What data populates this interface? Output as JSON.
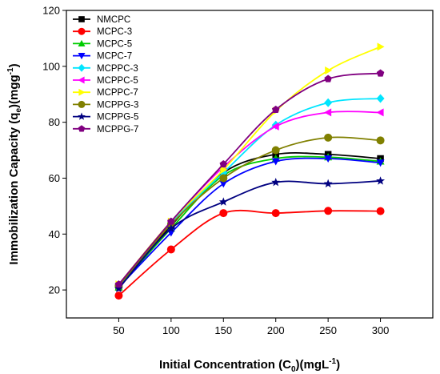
{
  "chart_data": {
    "type": "line",
    "x": [
      50,
      100,
      150,
      200,
      250,
      300
    ],
    "xlabel_parts": {
      "main": "Initial Concentration (C",
      "sub": "0",
      "rest": ")(mgL",
      "sup": "-1",
      "end": ")"
    },
    "ylabel_parts": {
      "main": "Immobilization Capacity (q",
      "sub": "e",
      "rest": ")(mgg",
      "sup": "-1",
      "end": ")"
    },
    "xticks": [
      "50",
      "100",
      "150",
      "200",
      "250",
      "300"
    ],
    "yticks": [
      "20",
      "40",
      "60",
      "80",
      "100",
      "120"
    ],
    "xlim": [
      0,
      350
    ],
    "ylim": [
      10,
      120
    ],
    "grid": false,
    "legend_position": "top-left",
    "series": [
      {
        "name": "NMCPC",
        "color": "#000000",
        "marker": "square",
        "values": [
          21,
          43,
          62,
          68.5,
          68.5,
          67
        ]
      },
      {
        "name": "MCPC-3",
        "color": "#ff0000",
        "marker": "circle",
        "values": [
          18,
          34.5,
          47.5,
          47.5,
          48.3,
          48.2
        ]
      },
      {
        "name": "MCPC-5",
        "color": "#00cc00",
        "marker": "triangle-up",
        "values": [
          21,
          42,
          61,
          67,
          67.5,
          66
        ]
      },
      {
        "name": "MCPC-7",
        "color": "#0000ff",
        "marker": "triangle-down",
        "values": [
          21,
          40.5,
          58,
          66,
          67,
          65.5
        ]
      },
      {
        "name": "MCPPC-3",
        "color": "#00e5ff",
        "marker": "diamond",
        "values": [
          21.5,
          44,
          62,
          79,
          87,
          88.5
        ]
      },
      {
        "name": "MCPPC-5",
        "color": "#ff00ff",
        "marker": "triangle-left",
        "values": [
          22,
          44.5,
          64,
          78.5,
          83.5,
          83.5
        ]
      },
      {
        "name": "MCPPC-7",
        "color": "#ffff00",
        "marker": "triangle-right",
        "values": [
          22,
          44.5,
          63,
          84,
          98.5,
          107
        ]
      },
      {
        "name": "MCPPG-3",
        "color": "#808000",
        "marker": "circle",
        "values": [
          21.5,
          43.5,
          60,
          70,
          74.5,
          73.5
        ]
      },
      {
        "name": "MCPPG-5",
        "color": "#000080",
        "marker": "star",
        "values": [
          20.5,
          42,
          51.5,
          58.5,
          58,
          59
        ]
      },
      {
        "name": "MCPPG-7",
        "color": "#800080",
        "marker": "pentagon",
        "values": [
          22,
          44.5,
          65,
          84.5,
          95.5,
          97.5
        ]
      }
    ]
  }
}
